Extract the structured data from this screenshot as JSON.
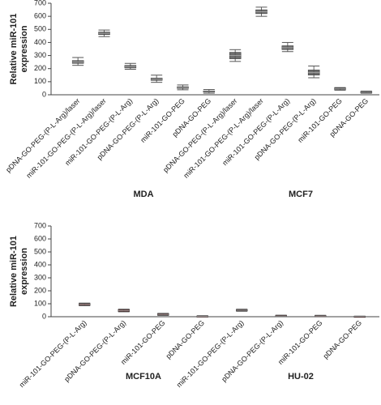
{
  "chart_data": [
    {
      "type": "box",
      "ylabel": [
        "Relative miR-101",
        "expression"
      ],
      "ylim": [
        0,
        700
      ],
      "yticks": [
        0,
        100,
        200,
        300,
        400,
        500,
        600,
        700
      ],
      "box_color": "#555555",
      "groups": [
        {
          "name": "MDA",
          "categories": [
            "pDNA-GO-PEG-(P-L-Arg)/laser",
            "miR-101-GO-PEG-(P-L-Arg)/laser",
            "miR-101-GO-PEG-(P-L-Arg)",
            "pDNA-GO-PEG-(P-L-Arg)",
            "miR-101-GO-PEG",
            "pDNA-GO-PEG"
          ],
          "boxes": [
            {
              "min": 225,
              "q1": 240,
              "median": 250,
              "q3": 262,
              "max": 285
            },
            {
              "min": 445,
              "q1": 460,
              "median": 470,
              "q3": 480,
              "max": 495
            },
            {
              "min": 195,
              "q1": 205,
              "median": 215,
              "q3": 225,
              "max": 240
            },
            {
              "min": 95,
              "q1": 110,
              "median": 120,
              "q3": 128,
              "max": 150
            },
            {
              "min": 38,
              "q1": 48,
              "median": 55,
              "q3": 62,
              "max": 75
            },
            {
              "min": 12,
              "q1": 20,
              "median": 25,
              "q3": 30,
              "max": 40
            }
          ]
        },
        {
          "name": "MCF7",
          "categories": [
            "pDNA-GO-PEG-(P-L-Arg)/laser",
            "miR-101-GO-PEG-(P-L-Arg)/laser",
            "miR-101-GO-PEG-(P-L-Arg)",
            "pDNA-GO-PEG-(P-L-Arg)",
            "miR-101-GO-PEG",
            "pDNA-GO-PEG"
          ],
          "boxes": [
            {
              "min": 255,
              "q1": 275,
              "median": 300,
              "q3": 325,
              "max": 345
            },
            {
              "min": 600,
              "q1": 620,
              "median": 635,
              "q3": 650,
              "max": 670
            },
            {
              "min": 330,
              "q1": 345,
              "median": 360,
              "q3": 375,
              "max": 400
            },
            {
              "min": 130,
              "q1": 150,
              "median": 170,
              "q3": 190,
              "max": 220
            },
            {
              "min": 35,
              "q1": 40,
              "median": 45,
              "q3": 52,
              "max": 55
            },
            {
              "min": 12,
              "q1": 15,
              "median": 20,
              "q3": 25,
              "max": 28
            }
          ]
        }
      ]
    },
    {
      "type": "box",
      "ylabel": [
        "Relative miR-101",
        "expression"
      ],
      "ylim": [
        0,
        700
      ],
      "yticks": [
        0,
        100,
        200,
        300,
        400,
        500,
        600,
        700
      ],
      "box_color": "#5a1a1a",
      "groups": [
        {
          "name": "MCF10A",
          "categories": [
            "miR-101-GO-PEG-(P-L-Arg)",
            "pDNA-GO-PEG-(P-L-Arg)",
            "miR-101-GO-PEG",
            "pDNA-GO-PEG"
          ],
          "boxes": [
            {
              "min": 85,
              "q1": 88,
              "median": 95,
              "q3": 102,
              "max": 105
            },
            {
              "min": 38,
              "q1": 40,
              "median": 48,
              "q3": 55,
              "max": 58
            },
            {
              "min": 10,
              "q1": 12,
              "median": 18,
              "q3": 24,
              "max": 26
            },
            {
              "min": 0,
              "q1": 1,
              "median": 3,
              "q3": 6,
              "max": 8
            }
          ]
        },
        {
          "name": "HU-02",
          "categories": [
            "miR-101-GO-PEG-(P-L-Arg)",
            "pDNA-GO-PEG-(P-L-Arg)",
            "miR-101-GO-PEG",
            "pDNA-GO-PEG"
          ],
          "boxes": [
            {
              "min": 42,
              "q1": 45,
              "median": 50,
              "q3": 55,
              "max": 58
            },
            {
              "min": 0,
              "q1": 1,
              "median": 5,
              "q3": 10,
              "max": 12
            },
            {
              "min": 1,
              "q1": 2,
              "median": 5,
              "q3": 9,
              "max": 11
            },
            {
              "min": 0,
              "q1": 0.5,
              "median": 2,
              "q3": 4,
              "max": 5
            }
          ]
        }
      ]
    }
  ]
}
